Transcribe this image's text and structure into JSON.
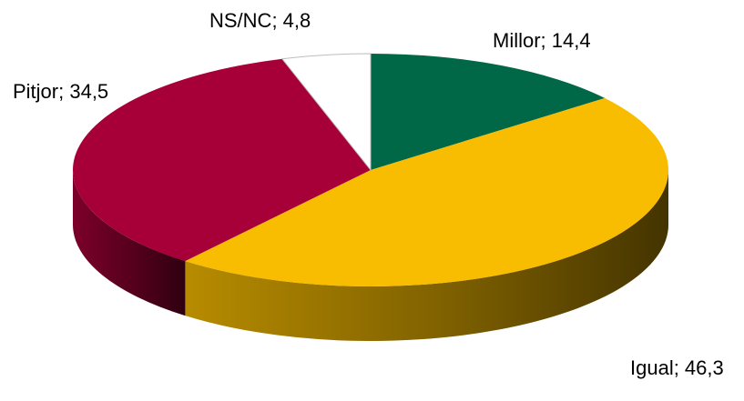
{
  "chart_data": {
    "type": "pie",
    "style": "3d",
    "label_format": "category; value",
    "start_angle_deg": 0,
    "direction": "clockwise",
    "slices": [
      {
        "label": "Millor",
        "value": 14.4,
        "display": "Millor; 14,4",
        "color": "#006846"
      },
      {
        "label": "Igual",
        "value": 46.3,
        "display": "Igual; 46,3",
        "color": "#F8BC00"
      },
      {
        "label": "Pitjor",
        "value": 34.5,
        "display": "Pitjor; 34,5",
        "color": "#A70039"
      },
      {
        "label": "NS/NC",
        "value": 4.8,
        "display": "NS/NC; 4,8",
        "color": "#FFFFFF"
      }
    ]
  }
}
